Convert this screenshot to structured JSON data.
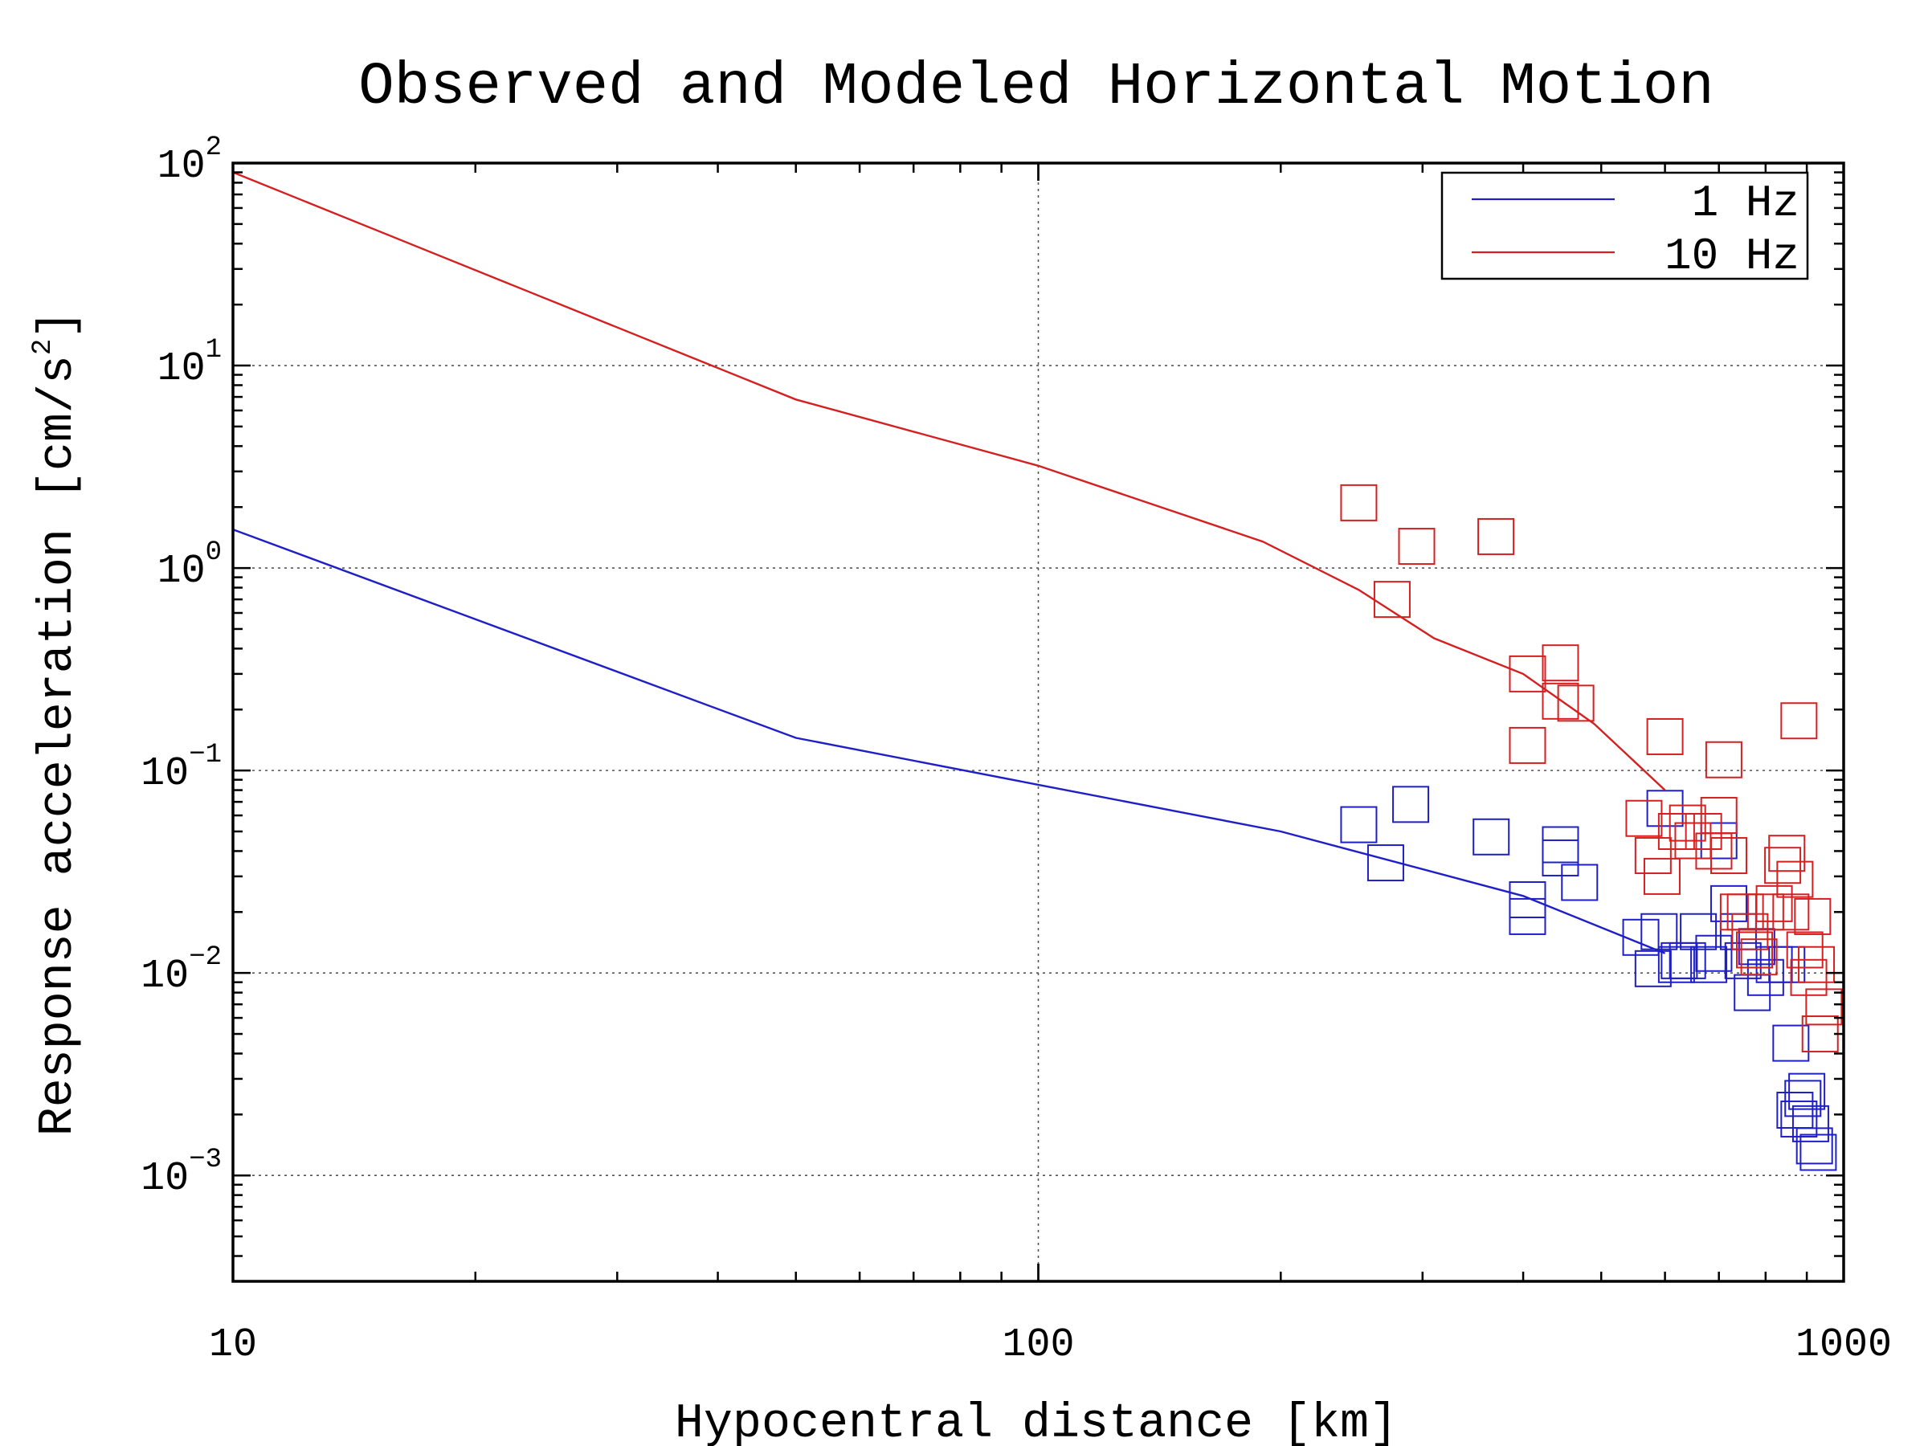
{
  "chart_data": {
    "type": "scatter",
    "title": "Observed and Modeled Horizontal Motion",
    "xlabel": "Hypocentral distance [km]",
    "ylabel": "Response acceleration [cm/s",
    "ylabel_sup": "2",
    "ylabel_end": "]",
    "x_scale": "log",
    "y_scale": "log",
    "xlim": [
      10,
      1000
    ],
    "ylim": [
      0.0003,
      100
    ],
    "x_ticks": [
      {
        "value": 10,
        "label": "10"
      },
      {
        "value": 100,
        "label": "100"
      },
      {
        "value": 1000,
        "label": "1000"
      }
    ],
    "y_ticks": [
      {
        "value": 100,
        "base": "10",
        "exp": "2"
      },
      {
        "value": 10,
        "base": "10",
        "exp": "1"
      },
      {
        "value": 1,
        "base": "10",
        "exp": "0"
      },
      {
        "value": 0.1,
        "base": "10",
        "exp": "−1"
      },
      {
        "value": 0.01,
        "base": "10",
        "exp": "−2"
      },
      {
        "value": 0.001,
        "base": "10",
        "exp": "−3"
      }
    ],
    "grid": true,
    "legend_position": "top-right",
    "series": [
      {
        "name": "1 Hz",
        "color": "#1f1fc8",
        "model_line": [
          [
            10,
            1.55
          ],
          [
            50,
            0.145
          ],
          [
            100,
            0.085
          ],
          [
            200,
            0.05
          ],
          [
            400,
            0.024
          ],
          [
            600,
            0.0125
          ]
        ],
        "observed": [
          [
            250,
            0.054
          ],
          [
            270,
            0.035
          ],
          [
            290,
            0.068
          ],
          [
            365,
            0.047
          ],
          [
            405,
            0.023
          ],
          [
            405,
            0.019
          ],
          [
            445,
            0.043
          ],
          [
            445,
            0.037
          ],
          [
            470,
            0.028
          ],
          [
            560,
            0.015
          ],
          [
            580,
            0.0105
          ],
          [
            590,
            0.016
          ],
          [
            600,
            0.065
          ],
          [
            620,
            0.011
          ],
          [
            625,
            0.0115
          ],
          [
            640,
            0.0115
          ],
          [
            660,
            0.016
          ],
          [
            680,
            0.011
          ],
          [
            690,
            0.0125
          ],
          [
            700,
            0.045
          ],
          [
            720,
            0.022
          ],
          [
            740,
            0.016
          ],
          [
            750,
            0.0115
          ],
          [
            770,
            0.008
          ],
          [
            780,
            0.0135
          ],
          [
            800,
            0.0095
          ],
          [
            820,
            0.011
          ],
          [
            850,
            0.011
          ],
          [
            860,
            0.0045
          ],
          [
            870,
            0.0021
          ],
          [
            880,
            0.0019
          ],
          [
            890,
            0.0024
          ],
          [
            900,
            0.0026
          ],
          [
            910,
            0.0018
          ],
          [
            920,
            0.0014
          ],
          [
            930,
            0.0013
          ]
        ]
      },
      {
        "name": "10 Hz",
        "color": "#d42020",
        "model_line": [
          [
            10,
            90
          ],
          [
            50,
            6.8
          ],
          [
            100,
            3.2
          ],
          [
            190,
            1.35
          ],
          [
            250,
            0.78
          ],
          [
            310,
            0.45
          ],
          [
            400,
            0.3
          ],
          [
            490,
            0.17
          ],
          [
            600,
            0.08
          ]
        ],
        "observed": [
          [
            250,
            2.1
          ],
          [
            275,
            0.7
          ],
          [
            295,
            1.28
          ],
          [
            370,
            1.43
          ],
          [
            405,
            0.3
          ],
          [
            405,
            0.133
          ],
          [
            445,
            0.34
          ],
          [
            445,
            0.22
          ],
          [
            465,
            0.215
          ],
          [
            565,
            0.058
          ],
          [
            580,
            0.038
          ],
          [
            595,
            0.03
          ],
          [
            600,
            0.147
          ],
          [
            620,
            0.05
          ],
          [
            640,
            0.055
          ],
          [
            650,
            0.045
          ],
          [
            670,
            0.05
          ],
          [
            690,
            0.04
          ],
          [
            700,
            0.06
          ],
          [
            710,
            0.113
          ],
          [
            720,
            0.038
          ],
          [
            740,
            0.02
          ],
          [
            755,
            0.02
          ],
          [
            765,
            0.016
          ],
          [
            775,
            0.013
          ],
          [
            785,
            0.012
          ],
          [
            800,
            0.02
          ],
          [
            820,
            0.022
          ],
          [
            840,
            0.034
          ],
          [
            850,
            0.039
          ],
          [
            860,
            0.02
          ],
          [
            870,
            0.029
          ],
          [
            880,
            0.176
          ],
          [
            895,
            0.013
          ],
          [
            905,
            0.0095
          ],
          [
            915,
            0.019
          ],
          [
            925,
            0.011
          ],
          [
            935,
            0.005
          ],
          [
            945,
            0.0068
          ]
        ]
      }
    ]
  }
}
